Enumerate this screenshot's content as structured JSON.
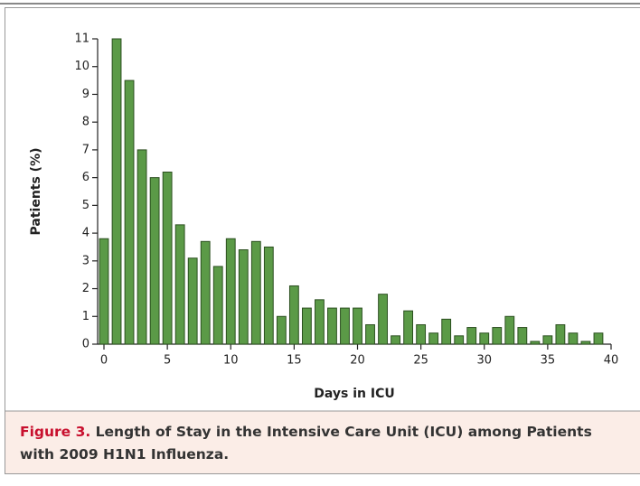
{
  "chart_data": {
    "type": "bar",
    "x": [
      0,
      1,
      2,
      3,
      4,
      5,
      6,
      7,
      8,
      9,
      10,
      11,
      12,
      13,
      14,
      15,
      16,
      17,
      18,
      19,
      20,
      21,
      22,
      23,
      24,
      25,
      26,
      27,
      28,
      29,
      30,
      31,
      32,
      33,
      34,
      35,
      36,
      37,
      38,
      39
    ],
    "values": [
      3.8,
      11.0,
      9.5,
      7.0,
      6.0,
      6.2,
      4.3,
      3.1,
      3.7,
      2.8,
      3.8,
      3.4,
      3.7,
      3.5,
      1.0,
      2.1,
      1.3,
      1.6,
      1.3,
      1.3,
      1.3,
      0.7,
      1.8,
      0.3,
      1.2,
      0.7,
      0.4,
      0.9,
      0.3,
      0.6,
      0.4,
      0.6,
      1.0,
      0.6,
      0.1,
      0.3,
      0.7,
      0.4,
      0.1,
      0.4
    ],
    "color": "#5b9a47",
    "xlabel": "Days in ICU",
    "ylabel": "Patients (%)",
    "xlim": [
      -0.5,
      40
    ],
    "xticks": [
      0,
      5,
      10,
      15,
      20,
      25,
      30,
      35,
      40
    ],
    "ylim": [
      0,
      11
    ],
    "yticks": [
      0,
      1,
      2,
      3,
      4,
      5,
      6,
      7,
      8,
      9,
      10,
      11
    ]
  },
  "figure_label": "Figure 3.",
  "figure_caption": "Length of Stay in the Intensive Care Unit (ICU) among Patients with 2009 H1N1 Influenza."
}
